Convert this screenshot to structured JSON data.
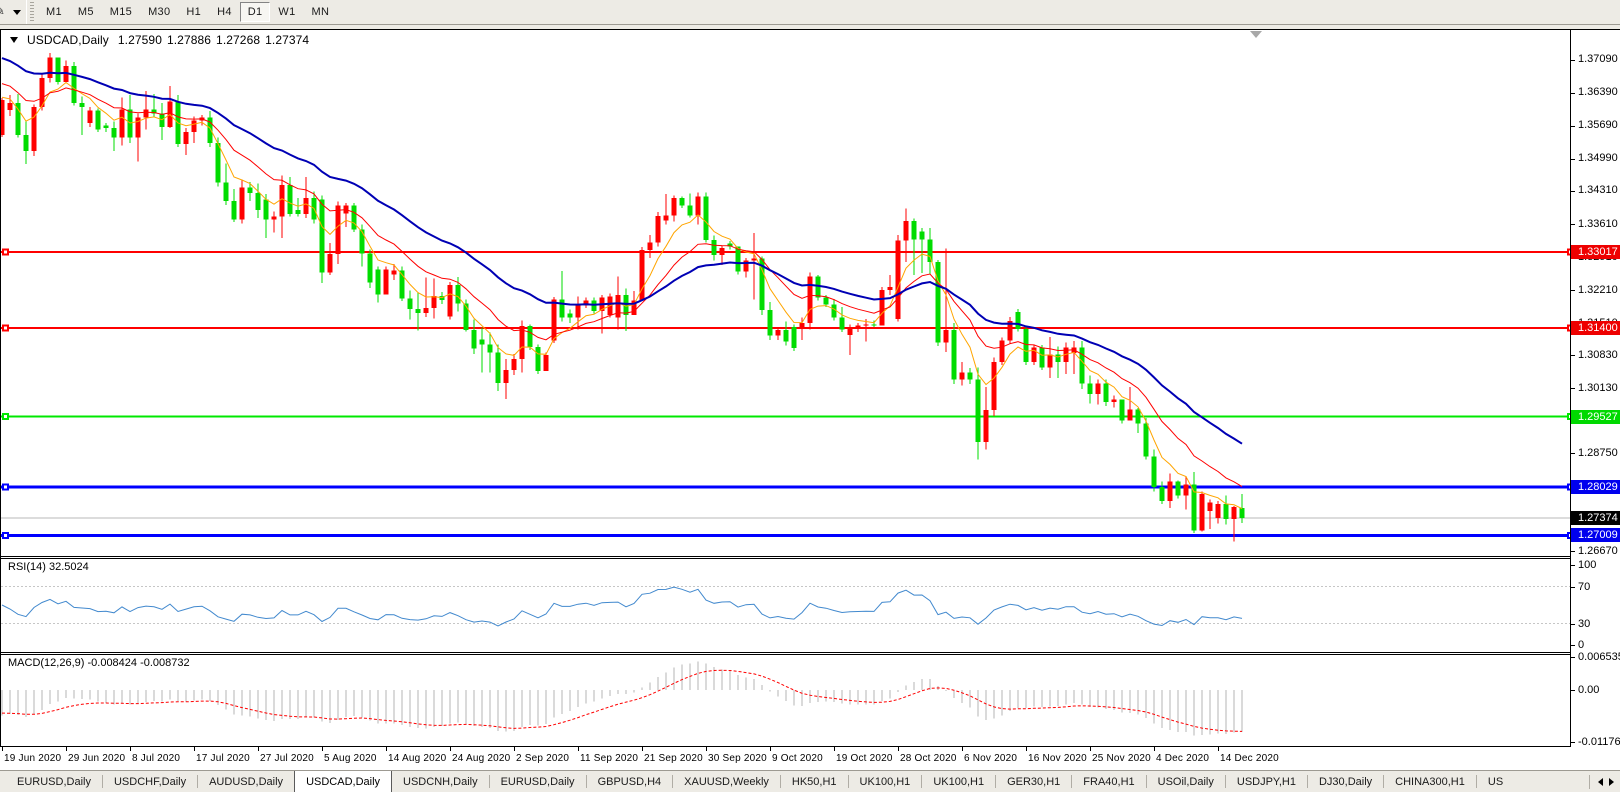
{
  "app": {
    "name": "MetaTrader chart window"
  },
  "toolbar": {
    "timeframes": [
      "M1",
      "M5",
      "M15",
      "M30",
      "H1",
      "H4",
      "D1",
      "W1",
      "MN"
    ],
    "active_timeframe": "D1",
    "icons": [
      "draw-tool-icon",
      "dropdown-arrow-icon"
    ]
  },
  "chart": {
    "symbol_label": "USDCAD,Daily",
    "ohlc": {
      "open": "1.27590",
      "high": "1.27886",
      "low": "1.27268",
      "close": "1.27374"
    }
  },
  "price_axis": {
    "labels": [
      "1.37090",
      "1.36390",
      "1.35690",
      "1.34990",
      "1.34310",
      "1.33610",
      "1.32910",
      "1.32210",
      "1.31510",
      "1.30830",
      "1.30130",
      "1.29430",
      "1.28750",
      "1.28050",
      "1.27350",
      "1.26670"
    ],
    "badges": [
      {
        "value": "1.33017",
        "color": "#ee0000",
        "price": 1.33017,
        "kind": "resistance-line-price"
      },
      {
        "value": "1.31400",
        "color": "#ee0000",
        "price": 1.314,
        "kind": "resistance-line-price"
      },
      {
        "value": "1.29527",
        "color": "#00d900",
        "price": 1.29527,
        "kind": "support-line-price"
      },
      {
        "value": "1.28029",
        "color": "#0000ee",
        "price": 1.28029,
        "kind": "support-line-price"
      },
      {
        "value": "1.27374",
        "color": "#000000",
        "price": 1.27374,
        "kind": "bid-price"
      },
      {
        "value": "1.27009",
        "color": "#0000ee",
        "price": 1.27009,
        "kind": "support-line-price"
      }
    ]
  },
  "hlines": [
    {
      "price": 1.33017,
      "color": "#ff0000",
      "width": 2
    },
    {
      "price": 1.314,
      "color": "#ff0000",
      "width": 2
    },
    {
      "price": 1.29527,
      "color": "#00e800",
      "width": 2
    },
    {
      "price": 1.28029,
      "color": "#0000ff",
      "width": 3
    },
    {
      "price": 1.27009,
      "color": "#0000ff",
      "width": 3
    }
  ],
  "bid_line": {
    "price": 1.27374,
    "color": "#b8b8b8"
  },
  "moving_averages": [
    {
      "period": 6,
      "color": "#ffa500",
      "seed_offset": 0.0008,
      "width": 1
    },
    {
      "period": 14,
      "color": "#ff0000",
      "seed_offset": 0.004,
      "width": 1
    },
    {
      "period": 30,
      "color": "#0000b4",
      "seed_offset": 0.0095,
      "width": 2
    }
  ],
  "indicators": {
    "rsi": {
      "label": "RSI(14)",
      "value_text": "32.5024",
      "period": 14,
      "levels": [
        70,
        30
      ],
      "axis_labels": [
        {
          "text": "100",
          "value": 100
        },
        {
          "text": "70",
          "value": 70
        },
        {
          "text": "30",
          "value": 30
        },
        {
          "text": "0",
          "value": 0
        }
      ],
      "color": "#4289ce"
    },
    "macd": {
      "label": "MACD(12,26,9)",
      "value_text": "-0.008424 -0.008732",
      "fast": 12,
      "slow": 26,
      "signal": 9,
      "axis_labels": [
        {
          "text": "0.006535",
          "value": 0.006535
        },
        {
          "text": "0.00",
          "value": 0.0
        },
        {
          "text": "-0.011766",
          "value": -0.011766
        }
      ],
      "histogram_color": "#b4b4b4",
      "signal_color": "#ff0000"
    }
  },
  "x_axis": {
    "labels": [
      "19 Jun 2020",
      "29 Jun 2020",
      "8 Jul 2020",
      "17 Jul 2020",
      "27 Jul 2020",
      "5 Aug 2020",
      "14 Aug 2020",
      "24 Aug 2020",
      "2 Sep 2020",
      "11 Sep 2020",
      "21 Sep 2020",
      "30 Sep 2020",
      "9 Oct 2020",
      "19 Oct 2020",
      "28 Oct 2020",
      "6 Nov 2020",
      "16 Nov 2020",
      "25 Nov 2020",
      "4 Dec 2020",
      "14 Dec 2020"
    ]
  },
  "tabs": {
    "items": [
      "EURUSD,Daily",
      "USDCHF,Daily",
      "AUDUSD,Daily",
      "USDCAD,Daily",
      "USDCNH,Daily",
      "EURUSD,Daily",
      "GBPUSD,H4",
      "XAUUSD,Weekly",
      "HK50,H1",
      "UK100,H1",
      "UK100,H1",
      "GER30,H1",
      "FRA40,H1",
      "USOil,Daily",
      "USDJPY,H1",
      "DJ30,Daily",
      "CHINA300,H1",
      "US"
    ],
    "active_index": 3
  },
  "chart_data": {
    "type": "candlestick",
    "symbol": "USDCAD",
    "timeframe": "Daily",
    "title": "USDCAD,Daily",
    "bull_color": "#ff0000",
    "bear_color": "#00dc00",
    "price_top": 1.37724,
    "price_bottom": 1.26591,
    "x_tick_step_bars": 8,
    "candles": [
      [
        1.35497,
        1.36282,
        1.35455,
        1.3624
      ],
      [
        1.36028,
        1.36346,
        1.359,
        1.36176
      ],
      [
        1.36176,
        1.36371,
        1.35444,
        1.355
      ],
      [
        1.355,
        1.35809,
        1.3488,
        1.35162
      ],
      [
        1.35162,
        1.36146,
        1.3505,
        1.36091
      ],
      [
        1.36091,
        1.36776,
        1.36017,
        1.36708
      ],
      [
        1.36708,
        1.37232,
        1.36609,
        1.37143
      ],
      [
        1.37143,
        1.37143,
        1.36568,
        1.36625
      ],
      [
        1.36625,
        1.37075,
        1.36625,
        1.36963
      ],
      [
        1.36963,
        1.37047,
        1.36119,
        1.36174
      ],
      [
        1.36174,
        1.36316,
        1.355,
        1.36091
      ],
      [
        1.35752,
        1.36091,
        1.35669,
        1.36017
      ],
      [
        1.36017,
        1.36061,
        1.35557,
        1.35612
      ],
      [
        1.35697,
        1.35754,
        1.35557,
        1.35642
      ],
      [
        1.35642,
        1.35782,
        1.35162,
        1.35444
      ],
      [
        1.35444,
        1.36288,
        1.35275,
        1.36034
      ],
      [
        1.36034,
        1.36343,
        1.35332,
        1.35444
      ],
      [
        1.35444,
        1.35949,
        1.34938,
        1.35866
      ],
      [
        1.35866,
        1.36428,
        1.35612,
        1.36034
      ],
      [
        1.36034,
        1.36371,
        1.35894,
        1.35949
      ],
      [
        1.35949,
        1.36174,
        1.35387,
        1.35669
      ],
      [
        1.35669,
        1.36541,
        1.35642,
        1.36204
      ],
      [
        1.36204,
        1.36343,
        1.35247,
        1.35302
      ],
      [
        1.35302,
        1.35642,
        1.35078,
        1.35557
      ],
      [
        1.35557,
        1.35894,
        1.35332,
        1.35809
      ],
      [
        1.35809,
        1.35921,
        1.35697,
        1.35866
      ],
      [
        1.35866,
        1.36006,
        1.35247,
        1.35332
      ],
      [
        1.35332,
        1.35444,
        1.34403,
        1.34488
      ],
      [
        1.34488,
        1.34889,
        1.34017,
        1.34102
      ],
      [
        1.34102,
        1.34354,
        1.33653,
        1.33708
      ],
      [
        1.33708,
        1.34552,
        1.33625,
        1.34384
      ],
      [
        1.34384,
        1.34497,
        1.34102,
        1.34272
      ],
      [
        1.34272,
        1.34467,
        1.33737,
        1.33905
      ],
      [
        1.3413,
        1.34242,
        1.33315,
        1.33708
      ],
      [
        1.33708,
        1.33877,
        1.33428,
        1.33765
      ],
      [
        1.33765,
        1.34637,
        1.33315,
        1.34439
      ],
      [
        1.34439,
        1.34609,
        1.33765,
        1.33822
      ],
      [
        1.33905,
        1.34159,
        1.33765,
        1.33822
      ],
      [
        1.33822,
        1.34609,
        1.33737,
        1.34159
      ],
      [
        1.34159,
        1.34299,
        1.33625,
        1.33708
      ],
      [
        1.3413,
        1.34215,
        1.32359,
        1.32584
      ],
      [
        1.32584,
        1.33203,
        1.32529,
        1.32978
      ],
      [
        1.32978,
        1.34083,
        1.3276,
        1.33998
      ],
      [
        1.33829,
        1.34053,
        1.33549,
        1.33998
      ],
      [
        1.33998,
        1.34053,
        1.33436,
        1.33491
      ],
      [
        1.33491,
        1.33604,
        1.32705,
        1.32987
      ],
      [
        1.32987,
        1.33069,
        1.32255,
        1.32368
      ],
      [
        1.32648,
        1.32705,
        1.31946,
        1.32113
      ],
      [
        1.32113,
        1.32705,
        1.32113,
        1.32648
      ],
      [
        1.32537,
        1.3276,
        1.32423,
        1.3262
      ],
      [
        1.3262,
        1.32705,
        1.31973,
        1.3203
      ],
      [
        1.3203,
        1.32198,
        1.31581,
        1.31806
      ],
      [
        1.31806,
        1.32143,
        1.31354,
        1.31721
      ],
      [
        1.31721,
        1.3248,
        1.31636,
        1.31833
      ],
      [
        1.31833,
        1.32452,
        1.31609,
        1.32086
      ],
      [
        1.32086,
        1.3217,
        1.31918,
        1.32003
      ],
      [
        1.31645,
        1.32376,
        1.31587,
        1.32319
      ],
      [
        1.32319,
        1.32488,
        1.31757,
        1.31927
      ],
      [
        1.31927,
        1.32009,
        1.31335,
        1.31363
      ],
      [
        1.31363,
        1.31587,
        1.30858,
        1.3097
      ],
      [
        1.31165,
        1.3142,
        1.30463,
        1.31053
      ],
      [
        1.31053,
        1.31307,
        1.30463,
        1.30885
      ],
      [
        1.30885,
        1.31053,
        1.30069,
        1.30239
      ],
      [
        1.30239,
        1.30745,
        1.29902,
        1.30519
      ],
      [
        1.30519,
        1.30858,
        1.30406,
        1.30745
      ],
      [
        1.30745,
        1.3156,
        1.30463,
        1.31447
      ],
      [
        1.31447,
        1.31475,
        1.30941,
        1.30998
      ],
      [
        1.30998,
        1.31053,
        1.30434,
        1.30491
      ],
      [
        1.30491,
        1.30885,
        1.30491,
        1.30828
      ],
      [
        1.31138,
        1.32067,
        1.31083,
        1.32009
      ],
      [
        1.32009,
        1.32611,
        1.31543,
        1.31628
      ],
      [
        1.3171,
        1.31795,
        1.31515,
        1.31628
      ],
      [
        1.31628,
        1.32077,
        1.31373,
        1.3188
      ],
      [
        1.3188,
        1.3205,
        1.31825,
        1.31992
      ],
      [
        1.31992,
        1.3205,
        1.3171,
        1.31768
      ],
      [
        1.31768,
        1.32105,
        1.3129,
        1.3205
      ],
      [
        1.31683,
        1.32132,
        1.31628,
        1.32077
      ],
      [
        1.31628,
        1.32499,
        1.31373,
        1.32105
      ],
      [
        1.32105,
        1.32245,
        1.31346,
        1.31683
      ],
      [
        1.31683,
        1.3219,
        1.31683,
        1.31992
      ],
      [
        1.31992,
        1.33118,
        1.31992,
        1.33061
      ],
      [
        1.33061,
        1.33377,
        1.32894,
        1.33218
      ],
      [
        1.33218,
        1.33865,
        1.33129,
        1.33778
      ],
      [
        1.33689,
        1.34248,
        1.336,
        1.33788
      ],
      [
        1.33788,
        1.34219,
        1.33659,
        1.34159
      ],
      [
        1.34159,
        1.34189,
        1.33954,
        1.34
      ],
      [
        1.34,
        1.34261,
        1.33748,
        1.33788
      ],
      [
        1.33788,
        1.34278,
        1.336,
        1.34189
      ],
      [
        1.34189,
        1.34278,
        1.33216,
        1.33275
      ],
      [
        1.33275,
        1.33364,
        1.32834,
        1.32951
      ],
      [
        1.32951,
        1.33159,
        1.32745,
        1.33099
      ],
      [
        1.33199,
        1.33245,
        1.33069,
        1.33129
      ],
      [
        1.33129,
        1.33129,
        1.32539,
        1.32599
      ],
      [
        1.32599,
        1.32894,
        1.3248,
        1.32834
      ],
      [
        1.32834,
        1.33419,
        1.32009,
        1.32881
      ],
      [
        1.32881,
        1.32923,
        1.31681,
        1.31787
      ],
      [
        1.31787,
        1.31956,
        1.31155,
        1.31242
      ],
      [
        1.31242,
        1.3142,
        1.31155,
        1.3136
      ],
      [
        1.3136,
        1.31541,
        1.31034,
        1.31119
      ],
      [
        1.31428,
        1.31483,
        1.30921,
        1.30979
      ],
      [
        1.31401,
        1.31625,
        1.31146,
        1.31513
      ],
      [
        1.31513,
        1.32582,
        1.31371,
        1.32497
      ],
      [
        1.32497,
        1.32525,
        1.3199,
        1.32047
      ],
      [
        1.32047,
        1.32103,
        1.3185,
        1.31905
      ],
      [
        1.31905,
        1.32018,
        1.31568,
        1.31625
      ],
      [
        1.31625,
        1.3185,
        1.31316,
        1.31371
      ],
      [
        1.31259,
        1.31483,
        1.30837,
        1.31428
      ],
      [
        1.31428,
        1.31513,
        1.31316,
        1.31456
      ],
      [
        1.31456,
        1.31596,
        1.31119,
        1.31483
      ],
      [
        1.31483,
        1.31568,
        1.31428,
        1.31456
      ],
      [
        1.31456,
        1.32272,
        1.31456,
        1.32215
      ],
      [
        1.32215,
        1.32525,
        1.32103,
        1.32272
      ],
      [
        1.31596,
        1.33379,
        1.31541,
        1.33258
      ],
      [
        1.33258,
        1.33937,
        1.32804,
        1.33676
      ],
      [
        1.33676,
        1.33729,
        1.32527,
        1.33279
      ],
      [
        1.33447,
        1.33525,
        1.32571,
        1.33286
      ],
      [
        1.33286,
        1.33525,
        1.32544,
        1.32804
      ],
      [
        1.32804,
        1.32847,
        1.31021,
        1.31102
      ],
      [
        1.31102,
        1.33086,
        1.30896,
        1.3136
      ],
      [
        1.3136,
        1.31515,
        1.3022,
        1.30313
      ],
      [
        1.30313,
        1.30682,
        1.3019,
        1.30466
      ],
      [
        1.30466,
        1.30559,
        1.3022,
        1.30313
      ],
      [
        1.30313,
        1.30572,
        1.28617,
        1.28988
      ],
      [
        1.28988,
        1.30158,
        1.28833,
        1.29666
      ],
      [
        1.29666,
        1.30775,
        1.29543,
        1.30682
      ],
      [
        1.30682,
        1.31206,
        1.3062,
        1.31144
      ],
      [
        1.31144,
        1.31636,
        1.31072,
        1.31551
      ],
      [
        1.31748,
        1.31804,
        1.31326,
        1.31382
      ],
      [
        1.31382,
        1.31439,
        1.30623,
        1.3068
      ],
      [
        1.3068,
        1.31044,
        1.30623,
        1.30989
      ],
      [
        1.30989,
        1.31044,
        1.3051,
        1.30567
      ],
      [
        1.30567,
        1.31214,
        1.30343,
        1.30847
      ],
      [
        1.30847,
        1.31017,
        1.30343,
        1.3068
      ],
      [
        1.3068,
        1.31102,
        1.30425,
        1.30989
      ],
      [
        1.30877,
        1.31129,
        1.30425,
        1.30989
      ],
      [
        1.30989,
        1.31129,
        1.30116,
        1.3023
      ],
      [
        1.3023,
        1.30398,
        1.29808,
        1.30005
      ],
      [
        1.30005,
        1.30313,
        1.29779,
        1.3023
      ],
      [
        1.3023,
        1.30313,
        1.29751,
        1.29836
      ],
      [
        1.29836,
        1.29976,
        1.29723,
        1.29891
      ],
      [
        1.29891,
        1.29891,
        1.29384,
        1.29441
      ],
      [
        1.29441,
        1.3015,
        1.29441,
        1.29679
      ],
      [
        1.29679,
        1.29706,
        1.29176,
        1.29384
      ],
      [
        1.29384,
        1.29501,
        1.28619,
        1.28676
      ],
      [
        1.28676,
        1.28824,
        1.2794,
        1.28029
      ],
      [
        1.28029,
        1.28146,
        1.27675,
        1.27734
      ],
      [
        1.27734,
        1.28324,
        1.27586,
        1.28146
      ],
      [
        1.28146,
        1.28176,
        1.27794,
        1.27851
      ],
      [
        1.27851,
        1.28265,
        1.27558,
        1.28089
      ],
      [
        1.28089,
        1.28354,
        1.27056,
        1.27115
      ],
      [
        1.27115,
        1.2794,
        1.27086,
        1.27881
      ],
      [
        1.27529,
        1.27764,
        1.27145,
        1.27705
      ],
      [
        1.2738,
        1.27734,
        1.27264,
        1.27675
      ],
      [
        1.27675,
        1.27851,
        1.27234,
        1.27355
      ],
      [
        1.27355,
        1.27633,
        1.26876,
        1.27607
      ],
      [
        1.2759,
        1.27886,
        1.27268,
        1.27374
      ]
    ]
  }
}
